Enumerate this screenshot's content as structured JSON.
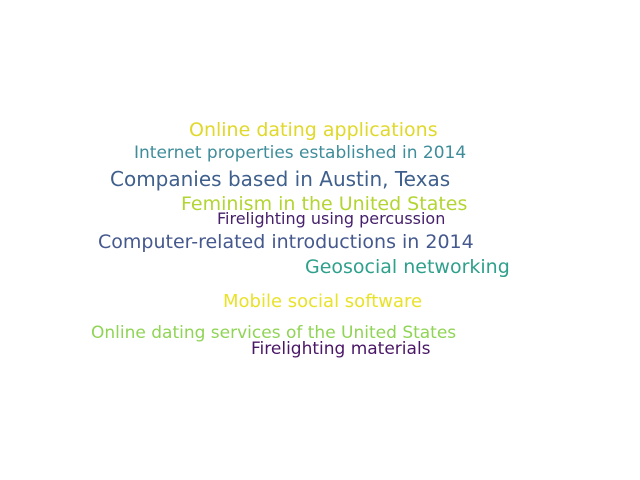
{
  "word_cloud": {
    "words": [
      {
        "text": "Online dating applications",
        "color": "#e0d82a"
      },
      {
        "text": "Internet properties established in 2014",
        "color": "#3f8d9a"
      },
      {
        "text": "Companies based in Austin, Texas",
        "color": "#3f5f8c"
      },
      {
        "text": "Feminism in the United States",
        "color": "#b3d534"
      },
      {
        "text": "Firelighting using percussion",
        "color": "#46206b"
      },
      {
        "text": "Computer-related introductions in 2014",
        "color": "#45598e"
      },
      {
        "text": "Geosocial networking",
        "color": "#2ea08b"
      },
      {
        "text": "Mobile social software",
        "color": "#e9e22a"
      },
      {
        "text": "Online dating services of the United States",
        "color": "#90d456"
      },
      {
        "text": "Firelighting materials",
        "color": "#4a1766"
      }
    ]
  }
}
